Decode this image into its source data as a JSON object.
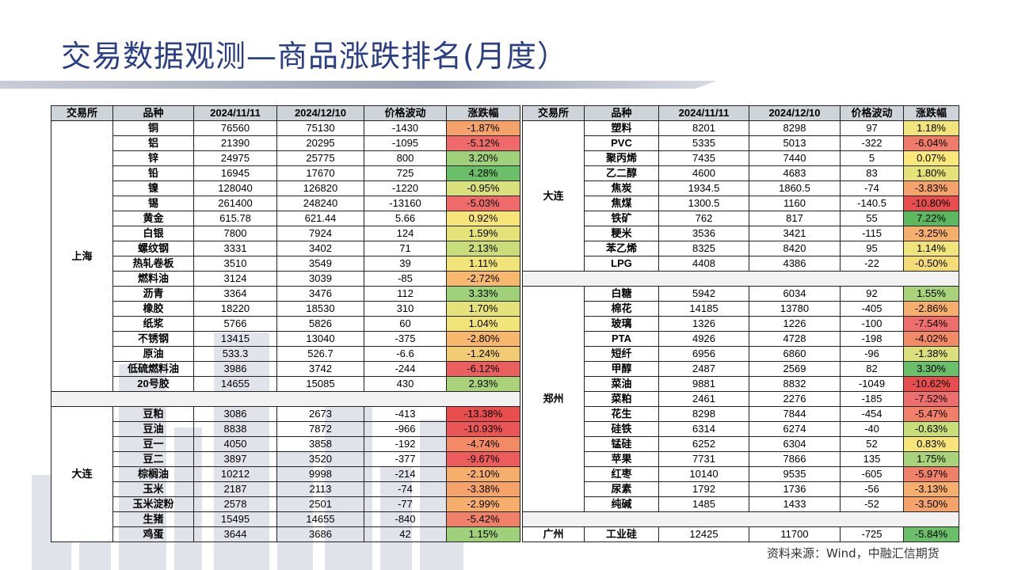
{
  "title": "交易数据观测—商品涨跌排名(月度）",
  "headers": [
    "交易所",
    "品种",
    "2024/11/11",
    "2024/12/10",
    "价格波动",
    "涨跌幅"
  ],
  "source": "资料来源：Wind，中融汇信期货",
  "left": {
    "shanghai": {
      "exchange": "上海",
      "rows": [
        {
          "name": "铜",
          "v1": "76560",
          "v2": "75130",
          "chg": "-1430",
          "pct": "-1.87%",
          "color": "#f5a36a"
        },
        {
          "name": "铝",
          "v1": "21390",
          "v2": "20295",
          "chg": "-1095",
          "pct": "-5.12%",
          "color": "#ef6b6b"
        },
        {
          "name": "锌",
          "v1": "24975",
          "v2": "25775",
          "chg": "800",
          "pct": "3.20%",
          "color": "#9fd07a"
        },
        {
          "name": "铅",
          "v1": "16945",
          "v2": "17670",
          "chg": "725",
          "pct": "4.28%",
          "color": "#6bbf6b"
        },
        {
          "name": "镍",
          "v1": "128040",
          "v2": "126820",
          "chg": "-1220",
          "pct": "-0.95%",
          "color": "#d9e07c"
        },
        {
          "name": "锡",
          "v1": "261400",
          "v2": "248240",
          "chg": "-13160",
          "pct": "-5.03%",
          "color": "#ef6b6b"
        },
        {
          "name": "黄金",
          "v1": "615.78",
          "v2": "621.44",
          "chg": "5.66",
          "pct": "0.92%",
          "color": "#f8e57a"
        },
        {
          "name": "白银",
          "v1": "7800",
          "v2": "7924",
          "chg": "124",
          "pct": "1.59%",
          "color": "#e6e27a"
        },
        {
          "name": "螺纹钢",
          "v1": "3331",
          "v2": "3402",
          "chg": "71",
          "pct": "2.13%",
          "color": "#c9dd78"
        },
        {
          "name": "热轧卷板",
          "v1": "3510",
          "v2": "3549",
          "chg": "39",
          "pct": "1.11%",
          "color": "#f0e47a"
        },
        {
          "name": "燃料油",
          "v1": "3124",
          "v2": "3039",
          "chg": "-85",
          "pct": "-2.72%",
          "color": "#f7b86e"
        },
        {
          "name": "沥青",
          "v1": "3364",
          "v2": "3476",
          "chg": "112",
          "pct": "3.33%",
          "color": "#9fd07a"
        },
        {
          "name": "橡胶",
          "v1": "18220",
          "v2": "18530",
          "chg": "310",
          "pct": "1.70%",
          "color": "#e6e27a"
        },
        {
          "name": "纸浆",
          "v1": "5766",
          "v2": "5826",
          "chg": "60",
          "pct": "1.04%",
          "color": "#f0e47a"
        },
        {
          "name": "不锈钢",
          "v1": "13415",
          "v2": "13040",
          "chg": "-375",
          "pct": "-2.80%",
          "color": "#f7b86e"
        },
        {
          "name": "原油",
          "v1": "533.3",
          "v2": "526.7",
          "chg": "-6.6",
          "pct": "-1.24%",
          "color": "#f2cc74"
        },
        {
          "name": "低硫燃料油",
          "v1": "3986",
          "v2": "3742",
          "chg": "-244",
          "pct": "-6.12%",
          "color": "#ec5f5f"
        },
        {
          "name": "20号胶",
          "v1": "14655",
          "v2": "15085",
          "chg": "430",
          "pct": "2.93%",
          "color": "#a9d37a"
        }
      ]
    },
    "dalian": {
      "exchange": "大连",
      "rows": [
        {
          "name": "豆粕",
          "v1": "3086",
          "v2": "2673",
          "chg": "-413",
          "pct": "-13.38%",
          "color": "#e84e4e"
        },
        {
          "name": "豆油",
          "v1": "8838",
          "v2": "7872",
          "chg": "-966",
          "pct": "-10.93%",
          "color": "#ea5555"
        },
        {
          "name": "豆一",
          "v1": "4050",
          "v2": "3858",
          "chg": "-192",
          "pct": "-4.74%",
          "color": "#f28a66"
        },
        {
          "name": "豆二",
          "v1": "3897",
          "v2": "3520",
          "chg": "-377",
          "pct": "-9.67%",
          "color": "#ec5c5c"
        },
        {
          "name": "棕榈油",
          "v1": "10212",
          "v2": "9998",
          "chg": "-214",
          "pct": "-2.10%",
          "color": "#f6ae6d"
        },
        {
          "name": "玉米",
          "v1": "2187",
          "v2": "2113",
          "chg": "-74",
          "pct": "-3.38%",
          "color": "#f5a36a"
        },
        {
          "name": "玉米淀粉",
          "v1": "2578",
          "v2": "2501",
          "chg": "-77",
          "pct": "-2.99%",
          "color": "#f6ae6d"
        },
        {
          "name": "生猪",
          "v1": "15495",
          "v2": "14655",
          "chg": "-840",
          "pct": "-5.42%",
          "color": "#f08068"
        },
        {
          "name": "鸡蛋",
          "v1": "3644",
          "v2": "3686",
          "chg": "42",
          "pct": "1.15%",
          "color": "#9fd07a"
        }
      ]
    }
  },
  "right": {
    "dalian": {
      "exchange": "大连",
      "rows": [
        {
          "name": "塑料",
          "v1": "8201",
          "v2": "8298",
          "chg": "97",
          "pct": "1.18%",
          "color": "#f0e47a"
        },
        {
          "name": "PVC",
          "v1": "5335",
          "v2": "5013",
          "chg": "-322",
          "pct": "-6.04%",
          "color": "#ef7b6a"
        },
        {
          "name": "聚丙烯",
          "v1": "7435",
          "v2": "7440",
          "chg": "5",
          "pct": "0.07%",
          "color": "#fbe87a"
        },
        {
          "name": "乙二醇",
          "v1": "4600",
          "v2": "4683",
          "chg": "83",
          "pct": "1.80%",
          "color": "#e6e27a"
        },
        {
          "name": "焦炭",
          "v1": "1934.5",
          "v2": "1860.5",
          "chg": "-74",
          "pct": "-3.83%",
          "color": "#f5a36a"
        },
        {
          "name": "焦煤",
          "v1": "1300.5",
          "v2": "1160",
          "chg": "-140.5",
          "pct": "-10.80%",
          "color": "#e84e4e"
        },
        {
          "name": "铁矿",
          "v1": "762",
          "v2": "817",
          "chg": "55",
          "pct": "7.22%",
          "color": "#5cb85c"
        },
        {
          "name": "粳米",
          "v1": "3536",
          "v2": "3421",
          "chg": "-115",
          "pct": "-3.25%",
          "color": "#f6ae6d"
        },
        {
          "name": "苯乙烯",
          "v1": "8325",
          "v2": "8420",
          "chg": "95",
          "pct": "1.14%",
          "color": "#f0e47a"
        },
        {
          "name": "LPG",
          "v1": "4408",
          "v2": "4386",
          "chg": "-22",
          "pct": "-0.50%",
          "color": "#f6dc78"
        }
      ]
    },
    "zhengzhou": {
      "exchange": "郑州",
      "rows": [
        {
          "name": "白糖",
          "v1": "5942",
          "v2": "6034",
          "chg": "92",
          "pct": "1.55%",
          "color": "#a9d37a"
        },
        {
          "name": "棉花",
          "v1": "14185",
          "v2": "13780",
          "chg": "-405",
          "pct": "-2.86%",
          "color": "#f6ae6d"
        },
        {
          "name": "玻璃",
          "v1": "1326",
          "v2": "1226",
          "chg": "-100",
          "pct": "-7.54%",
          "color": "#ee6e6e"
        },
        {
          "name": "PTA",
          "v1": "4926",
          "v2": "4728",
          "chg": "-198",
          "pct": "-4.02%",
          "color": "#f28a66"
        },
        {
          "name": "短纤",
          "v1": "6956",
          "v2": "6860",
          "chg": "-96",
          "pct": "-1.38%",
          "color": "#dbe07c"
        },
        {
          "name": "甲醇",
          "v1": "2487",
          "v2": "2569",
          "chg": "82",
          "pct": "3.30%",
          "color": "#6bbf6b"
        },
        {
          "name": "菜油",
          "v1": "9881",
          "v2": "8832",
          "chg": "-1049",
          "pct": "-10.62%",
          "color": "#e84e4e"
        },
        {
          "name": "菜粕",
          "v1": "2461",
          "v2": "2276",
          "chg": "-185",
          "pct": "-7.52%",
          "color": "#ee6e6e"
        },
        {
          "name": "花生",
          "v1": "8298",
          "v2": "7844",
          "chg": "-454",
          "pct": "-5.47%",
          "color": "#f08068"
        },
        {
          "name": "硅铁",
          "v1": "6314",
          "v2": "6274",
          "chg": "-40",
          "pct": "-0.63%",
          "color": "#c9dd78"
        },
        {
          "name": "锰硅",
          "v1": "6252",
          "v2": "6304",
          "chg": "52",
          "pct": "0.83%",
          "color": "#f8e57a"
        },
        {
          "name": "苹果",
          "v1": "7731",
          "v2": "7866",
          "chg": "135",
          "pct": "1.75%",
          "color": "#a9d37a"
        },
        {
          "name": "红枣",
          "v1": "10140",
          "v2": "9535",
          "chg": "-605",
          "pct": "-5.97%",
          "color": "#f08068"
        },
        {
          "name": "尿素",
          "v1": "1792",
          "v2": "1736",
          "chg": "-56",
          "pct": "-3.13%",
          "color": "#f6ae6d"
        },
        {
          "name": "纯碱",
          "v1": "1485",
          "v2": "1433",
          "chg": "-52",
          "pct": "-3.50%",
          "color": "#f5a36a"
        }
      ]
    },
    "guangzhou": {
      "exchange": "广州",
      "rows": [
        {
          "name": "工业硅",
          "v1": "12425",
          "v2": "11700",
          "chg": "-725",
          "pct": "-5.84%",
          "color": "#6bbf6b"
        }
      ]
    }
  }
}
